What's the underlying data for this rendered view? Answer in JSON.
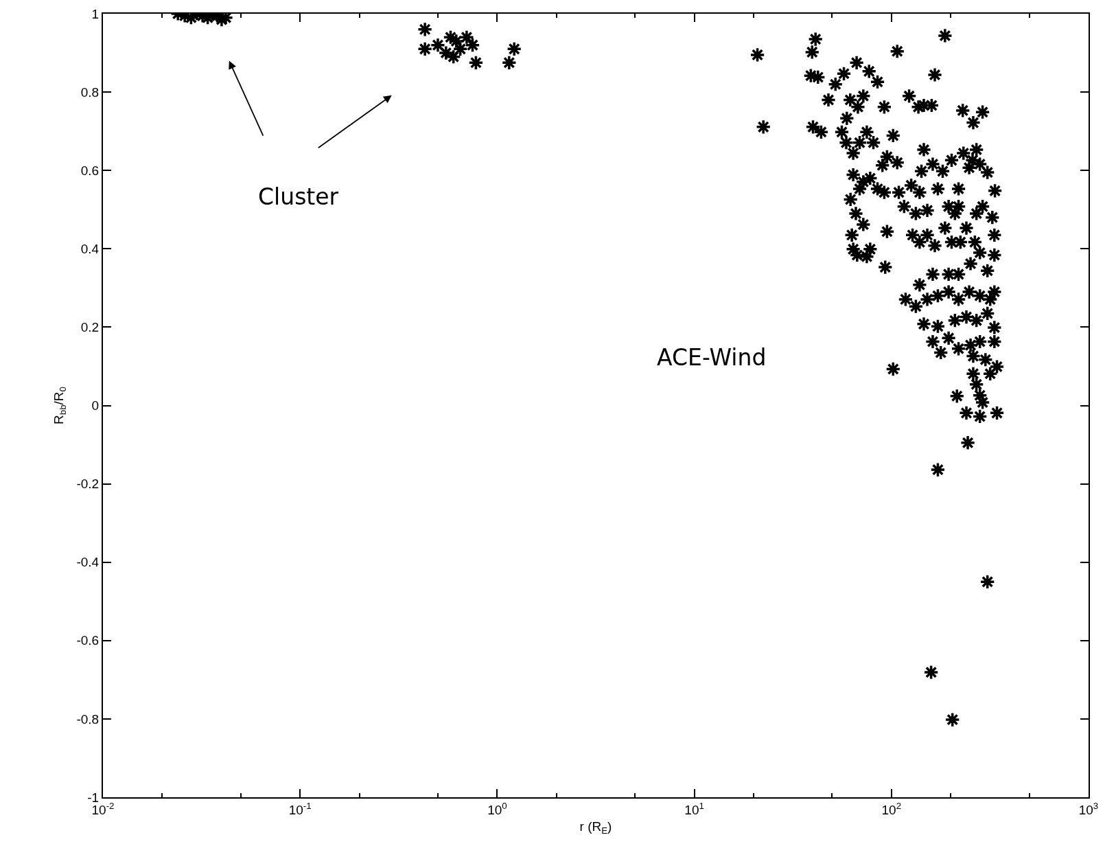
{
  "chart_data": {
    "type": "scatter",
    "xlabel": "r (R$_{E}$)",
    "ylabel": "R$_{bb}$/R$_{0}$",
    "annotations": [
      "Cluster",
      "ACE-Wind"
    ],
    "log": "x",
    "grid": false,
    "marker": "cross",
    "xlim": [
      0.01,
      1000
    ],
    "xticks": [
      {
        "value": 0.01,
        "label": "10$^{-2}$"
      },
      {
        "value": 0.1,
        "label": "10$^{-1}$"
      },
      {
        "value": 1,
        "label": "10$^{0}$"
      },
      {
        "value": 10,
        "label": "10$^{1}$"
      },
      {
        "value": 100,
        "label": "10$^{2}$"
      },
      {
        "value": 1000,
        "label": "10$^{3}$"
      }
    ],
    "ylim": [
      -1,
      1
    ],
    "yticks": [
      -1,
      -0.8,
      -0.6,
      -0.4,
      -0.2,
      0,
      0.2,
      0.4,
      0.6,
      0.8,
      1
    ],
    "series": [
      {
        "color": "#000000",
        "x": [
          0.024,
          0.026,
          0.028,
          0.03,
          0.032,
          0.034,
          0.036,
          0.038,
          0.04,
          0.042,
          0.43,
          0.43,
          0.5,
          0.55,
          0.58,
          0.62,
          0.65,
          0.7,
          0.75,
          0.78,
          0.6,
          1.15,
          1.22,
          20.9,
          22.4,
          39.6,
          41.2,
          39,
          42.4,
          40,
          44,
          47.9,
          52,
          57.4,
          61.8,
          59.4,
          66.6,
          67.6,
          72,
          77,
          85,
          92,
          107,
          123,
          187,
          166,
          146,
          160,
          137,
          230,
          290,
          260,
          56,
          59,
          64,
          69,
          75,
          81,
          90,
          95,
          85,
          92,
          62,
          64,
          66,
          69,
          72,
          63,
          64,
          67,
          72,
          75,
          78,
          93,
          95,
          78,
          102,
          109,
          107,
          116,
          126,
          133,
          139,
          142,
          146,
          152,
          162,
          172,
          182,
          195,
          202,
          210,
          219,
          232,
          248,
          258,
          270,
          281,
          290,
          270,
          240,
          219,
          265,
          307,
          335,
          325,
          333,
          139,
          152,
          166,
          187,
          202,
          224,
          128,
          281,
          307,
          333,
          252,
          219,
          195,
          162,
          139,
          118,
          133,
          152,
          172,
          195,
          219,
          248,
          281,
          317,
          333,
          146,
          172,
          210,
          240,
          270,
          307,
          333,
          195,
          162,
          178,
          219,
          252,
          281,
          333,
          260,
          300,
          343,
          317,
          102,
          260,
          270,
          281,
          290,
          215,
          240,
          281,
          343,
          244,
          172,
          307,
          159,
          204
        ],
        "values": [
          1.0,
          0.995,
          0.99,
          1.0,
          0.995,
          0.99,
          1.0,
          0.995,
          0.985,
          0.99,
          0.96,
          0.91,
          0.92,
          0.9,
          0.94,
          0.93,
          0.91,
          0.94,
          0.92,
          0.875,
          0.89,
          0.875,
          0.91,
          0.895,
          0.711,
          0.902,
          0.935,
          0.842,
          0.838,
          0.711,
          0.698,
          0.78,
          0.82,
          0.847,
          0.78,
          0.733,
          0.875,
          0.762,
          0.79,
          0.853,
          0.826,
          0.762,
          0.904,
          0.79,
          0.944,
          0.844,
          0.766,
          0.766,
          0.762,
          0.753,
          0.749,
          0.722,
          0.698,
          0.671,
          0.644,
          0.671,
          0.698,
          0.671,
          0.613,
          0.635,
          0.553,
          0.544,
          0.526,
          0.589,
          0.49,
          0.553,
          0.571,
          0.435,
          0.399,
          0.384,
          0.462,
          0.38,
          0.399,
          0.353,
          0.444,
          0.58,
          0.689,
          0.544,
          0.62,
          0.508,
          0.562,
          0.49,
          0.544,
          0.598,
          0.653,
          0.498,
          0.616,
          0.553,
          0.598,
          0.508,
          0.626,
          0.49,
          0.553,
          0.644,
          0.607,
          0.626,
          0.653,
          0.616,
          0.508,
          0.49,
          0.453,
          0.508,
          0.417,
          0.595,
          0.548,
          0.48,
          0.435,
          0.417,
          0.435,
          0.408,
          0.453,
          0.417,
          0.417,
          0.435,
          0.39,
          0.344,
          0.384,
          0.362,
          0.335,
          0.335,
          0.335,
          0.308,
          0.271,
          0.253,
          0.271,
          0.28,
          0.29,
          0.271,
          0.29,
          0.28,
          0.271,
          0.29,
          0.208,
          0.202,
          0.217,
          0.226,
          0.217,
          0.235,
          0.199,
          0.172,
          0.163,
          0.135,
          0.145,
          0.154,
          0.163,
          0.163,
          0.126,
          0.117,
          0.099,
          0.081,
          0.093,
          0.081,
          0.054,
          0.026,
          0.008,
          0.024,
          -0.019,
          -0.028,
          -0.019,
          -0.095,
          -0.164,
          -0.45,
          -0.681,
          -0.802
        ]
      }
    ]
  }
}
